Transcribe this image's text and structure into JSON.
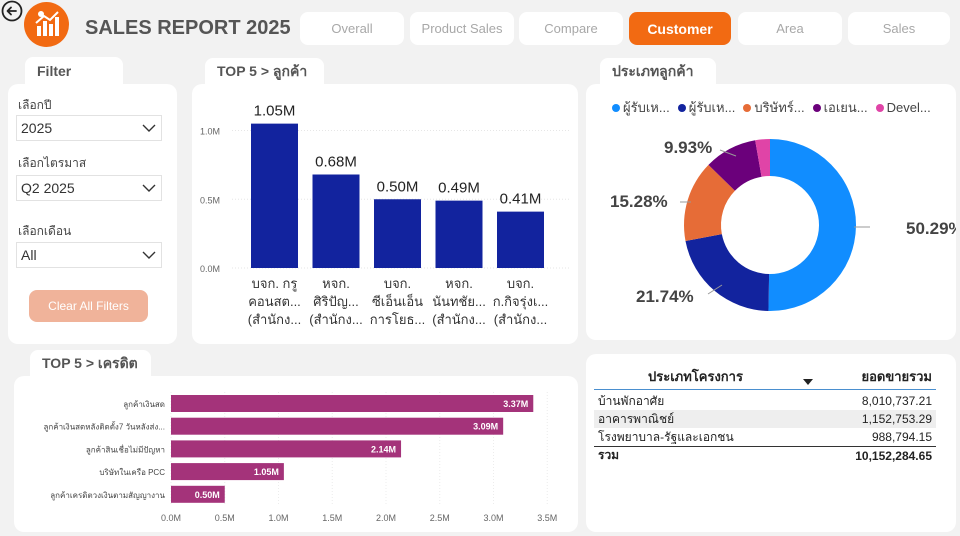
{
  "header": {
    "title": "SALES REPORT 2025",
    "tabs": [
      {
        "label": "Overall",
        "active": false
      },
      {
        "label": "Product Sales",
        "active": false
      },
      {
        "label": "Compare",
        "active": false
      },
      {
        "label": "Customer",
        "active": true
      },
      {
        "label": "Area",
        "active": false
      },
      {
        "label": "Sales",
        "active": false
      }
    ],
    "accent_color": "#f26a12"
  },
  "filter": {
    "title": "Filter",
    "year_label": "เลือกปี",
    "year_value": "2025",
    "quarter_label": "เลือกไตรมาส",
    "quarter_value": "Q2 2025",
    "month_label": "เลือกเดือน",
    "month_value": "All",
    "clear_button": "Clear All Filters"
  },
  "top5_customers": {
    "title": "TOP 5 > ลูกค้า",
    "bar_color": "#12239e"
  },
  "customer_type": {
    "title": "ประเภทลูกค้า",
    "legend": [
      {
        "label": "ผู้รับเห...",
        "color": "#118dff"
      },
      {
        "label": "ผู้รับเห...",
        "color": "#12239e"
      },
      {
        "label": "บริษัทร์...",
        "color": "#e66c37"
      },
      {
        "label": "เอเยน...",
        "color": "#6b007b"
      },
      {
        "label": "Devel...",
        "color": "#e044a7"
      }
    ]
  },
  "top5_credit": {
    "title": "TOP 5 > เครดิต",
    "bar_color": "#a4337a"
  },
  "project_table": {
    "col1": "ประเภทโครงการ",
    "col2": "ยอดขายรวม",
    "rows": [
      {
        "type": "บ้านพักอาศัย",
        "amount": "8,010,737.21"
      },
      {
        "type": "อาคารพาณิชย์",
        "amount": "1,152,753.29"
      },
      {
        "type": "โรงพยาบาล-รัฐและเอกชน",
        "amount": "988,794.15"
      }
    ],
    "total_label": "รวม",
    "total_amount": "10,152,284.65"
  },
  "chart_data": [
    {
      "type": "bar",
      "title": "TOP 5 > ลูกค้า",
      "categories": [
        [
          "บจก. กรู",
          "คอนสต...",
          "(สำนักง..."
        ],
        [
          "หจก.",
          "ศิริปัญ...",
          "(สำนักง..."
        ],
        [
          "บจก.",
          "ซีเอ็นเอ็น",
          "การโยธ..."
        ],
        [
          "หจก.",
          "นันทชัย...",
          "(สำนักง..."
        ],
        [
          "บจก.",
          "ก.กิจรุ่งเ...",
          "(สำนักง..."
        ]
      ],
      "values": [
        1.05,
        0.68,
        0.5,
        0.49,
        0.41
      ],
      "data_labels": [
        "1.05M",
        "0.68M",
        "0.50M",
        "0.49M",
        "0.41M"
      ],
      "yticks": [
        "0.0M",
        "0.5M",
        "1.0M"
      ],
      "ylim": [
        0,
        1.2
      ]
    },
    {
      "type": "pie",
      "title": "ประเภทลูกค้า",
      "donut": true,
      "values": [
        50.29,
        21.74,
        15.28,
        9.93,
        2.76
      ],
      "data_labels": [
        "50.29%",
        "21.74%",
        "15.28%",
        "9.93%",
        ""
      ],
      "colors": [
        "#118dff",
        "#12239e",
        "#e66c37",
        "#6b007b",
        "#e044a7"
      ]
    },
    {
      "type": "bar",
      "orientation": "horizontal",
      "title": "TOP 5 > เครดิต",
      "categories": [
        "ลูกค้าเงินสด",
        "ลูกค้าเงินสดหลังติดตั้ง7 วันหลังส่ง...",
        "ลูกค้าสินเชื่อไม่มีปัญหา",
        "บริษัทในเครือ PCC",
        "ลูกค้าเครดิตวงเงินตามสัญญางาน"
      ],
      "values": [
        3.37,
        3.09,
        2.14,
        1.05,
        0.5
      ],
      "data_labels": [
        "3.37M",
        "3.09M",
        "2.14M",
        "1.05M",
        "0.50M"
      ],
      "xticks": [
        "0.0M",
        "0.5M",
        "1.0M",
        "1.5M",
        "2.0M",
        "2.5M",
        "3.0M",
        "3.5M"
      ],
      "xlim": [
        0,
        3.5
      ]
    }
  ]
}
